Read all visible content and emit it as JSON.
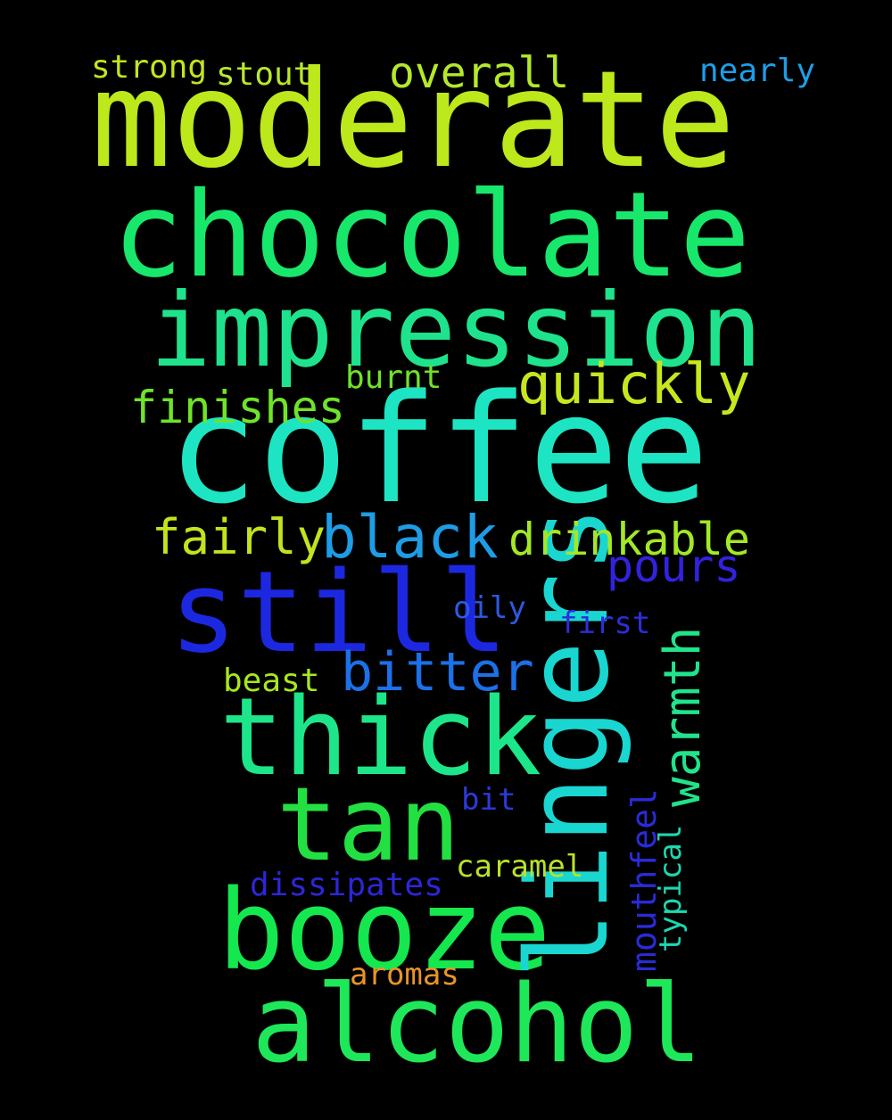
{
  "words": [
    {
      "key": "moderate",
      "text": "moderate",
      "color": "#bde81b"
    },
    {
      "key": "chocolate",
      "text": "chocolate",
      "color": "#17e86b"
    },
    {
      "key": "impression",
      "text": "impression",
      "color": "#1ee38c"
    },
    {
      "key": "coffee",
      "text": "coffee",
      "color": "#1de5c3"
    },
    {
      "key": "still",
      "text": "still",
      "color": "#1c28e0"
    },
    {
      "key": "thick",
      "text": "thick",
      "color": "#1de68a"
    },
    {
      "key": "tan",
      "text": "tan",
      "color": "#23e042"
    },
    {
      "key": "booze",
      "text": "booze",
      "color": "#14e84e"
    },
    {
      "key": "alcohol",
      "text": "alcohol",
      "color": "#1ee859"
    },
    {
      "key": "lingers",
      "text": "lingers",
      "color": "#1ad6d0"
    },
    {
      "key": "warmth",
      "text": "warmth",
      "color": "#21e38b"
    },
    {
      "key": "mouthfeel",
      "text": "mouthfeel",
      "color": "#2a2bd8"
    },
    {
      "key": "typical",
      "text": "typical",
      "color": "#1dd7b0"
    },
    {
      "key": "strong",
      "text": "strong",
      "color": "#c4e31d"
    },
    {
      "key": "stout",
      "text": "stout",
      "color": "#b9e82a"
    },
    {
      "key": "overall",
      "text": "overall",
      "color": "#b4e82a"
    },
    {
      "key": "nearly",
      "text": "nearly",
      "color": "#1c9fe8"
    },
    {
      "key": "quickly",
      "text": "quickly",
      "color": "#c8e61e"
    },
    {
      "key": "burnt",
      "text": "burnt",
      "color": "#6fe32a"
    },
    {
      "key": "finishes",
      "text": "finishes",
      "color": "#6fe32a"
    },
    {
      "key": "fairly",
      "text": "fairly",
      "color": "#c2e31d"
    },
    {
      "key": "black",
      "text": "black",
      "color": "#1c9de5"
    },
    {
      "key": "drinkable",
      "text": "drinkable",
      "color": "#a2e826"
    },
    {
      "key": "pours",
      "text": "pours",
      "color": "#3222de"
    },
    {
      "key": "oily",
      "text": "oily",
      "color": "#2c5ae0"
    },
    {
      "key": "first",
      "text": "first",
      "color": "#2c2edc"
    },
    {
      "key": "bitter",
      "text": "bitter",
      "color": "#1c70e8"
    },
    {
      "key": "beast",
      "text": "beast",
      "color": "#a8e81c"
    },
    {
      "key": "bit",
      "text": "bit",
      "color": "#2c3ad8"
    },
    {
      "key": "caramel",
      "text": "caramel",
      "color": "#b9e22a"
    },
    {
      "key": "dissipates",
      "text": "dissipates",
      "color": "#2e26d6"
    },
    {
      "key": "aromas",
      "text": "aromas",
      "color": "#e8942a"
    }
  ]
}
